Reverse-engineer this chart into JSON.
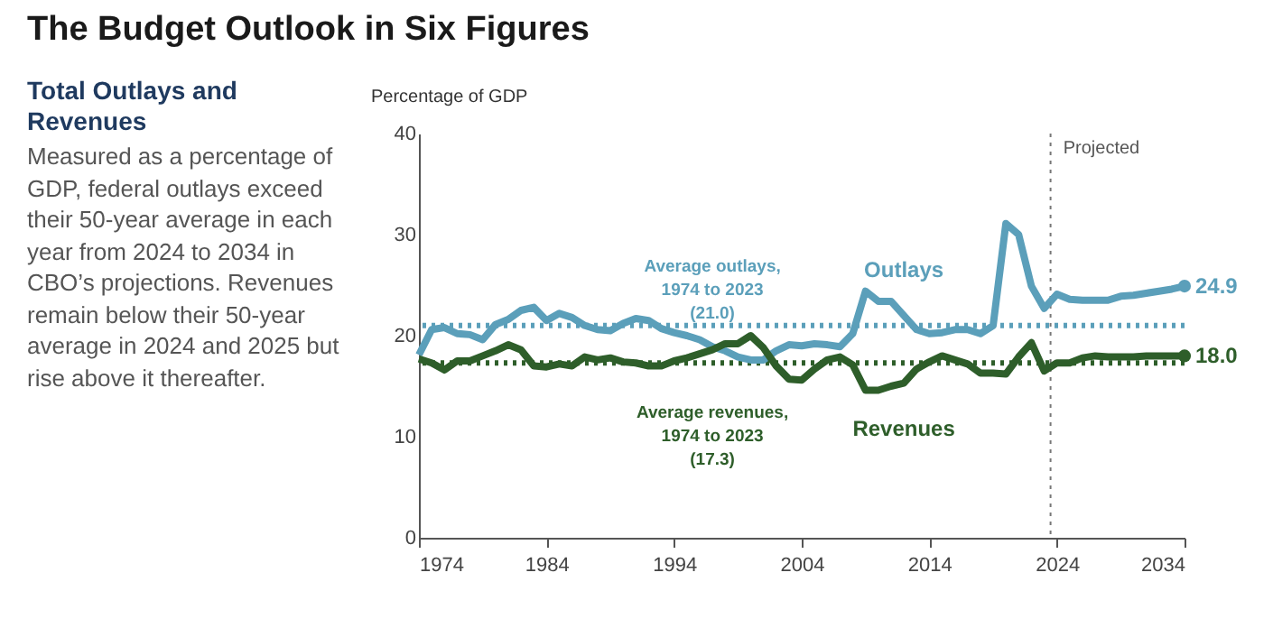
{
  "chart_data": {
    "type": "line",
    "title": "The Budget Outlook in Six Figures",
    "subtitle": "Total Outlays and Revenues",
    "ylabel": "Percentage of GDP",
    "annotations": [
      "Measured as a percentage of GDP, federal outlays exceed their 50-year average in each year from 2024 to 2034 in CBO’s projections. Revenues remain below their 50-year average in 2024 and 2025 but rise above it thereafter."
    ],
    "x": [
      1974,
      1975,
      1976,
      1977,
      1978,
      1979,
      1980,
      1981,
      1982,
      1983,
      1984,
      1985,
      1986,
      1987,
      1988,
      1989,
      1990,
      1991,
      1992,
      1993,
      1994,
      1995,
      1996,
      1997,
      1998,
      1999,
      2000,
      2001,
      2002,
      2003,
      2004,
      2005,
      2006,
      2007,
      2008,
      2009,
      2010,
      2011,
      2012,
      2013,
      2014,
      2015,
      2016,
      2017,
      2018,
      2019,
      2020,
      2021,
      2022,
      2023,
      2024,
      2025,
      2026,
      2027,
      2028,
      2029,
      2030,
      2031,
      2032,
      2033,
      2034
    ],
    "series": [
      {
        "name": "Outlays",
        "color": "#5b9fba",
        "values": [
          18.1,
          20.6,
          20.8,
          20.2,
          20.1,
          19.6,
          21.1,
          21.6,
          22.5,
          22.8,
          21.5,
          22.2,
          21.8,
          21.0,
          20.6,
          20.5,
          21.2,
          21.7,
          21.5,
          20.7,
          20.3,
          20.0,
          19.6,
          18.9,
          18.5,
          17.9,
          17.6,
          17.6,
          18.5,
          19.1,
          19.0,
          19.2,
          19.1,
          18.9,
          20.2,
          24.4,
          23.4,
          23.4,
          22.0,
          20.6,
          20.2,
          20.3,
          20.6,
          20.6,
          20.2,
          21.0,
          31.1,
          30.0,
          24.9,
          22.7,
          24.1,
          23.6,
          23.5,
          23.5,
          23.5,
          23.9,
          24.0,
          24.2,
          24.4,
          24.6,
          24.9
        ],
        "value_labels": [
          null,
          null,
          null,
          null,
          null,
          null,
          null,
          null,
          null,
          null,
          null,
          null,
          null,
          null,
          null,
          null,
          null,
          null,
          null,
          null,
          null,
          null,
          null,
          null,
          null,
          null,
          null,
          null,
          null,
          null,
          null,
          null,
          null,
          null,
          null,
          null,
          null,
          null,
          null,
          null,
          null,
          null,
          null,
          null,
          null,
          null,
          null,
          null,
          null,
          null,
          null,
          null,
          null,
          null,
          null,
          null,
          null,
          null,
          null,
          null,
          "24.9"
        ]
      },
      {
        "name": "Revenues",
        "color": "#2e5e2a",
        "values": [
          17.7,
          17.3,
          16.6,
          17.5,
          17.5,
          18.0,
          18.5,
          19.1,
          18.6,
          17.0,
          16.9,
          17.2,
          17.0,
          17.9,
          17.6,
          17.8,
          17.4,
          17.3,
          17.0,
          17.0,
          17.5,
          17.8,
          18.2,
          18.6,
          19.2,
          19.2,
          20.0,
          18.8,
          17.0,
          15.7,
          15.6,
          16.7,
          17.6,
          17.9,
          17.1,
          14.6,
          14.6,
          15.0,
          15.3,
          16.7,
          17.4,
          18.0,
          17.6,
          17.2,
          16.3,
          16.3,
          16.2,
          17.9,
          19.3,
          16.5,
          17.3,
          17.3,
          17.8,
          18.0,
          17.9,
          17.9,
          17.9,
          18.0,
          18.0,
          18.0,
          18.0
        ],
        "value_labels": [
          null,
          null,
          null,
          null,
          null,
          null,
          null,
          null,
          null,
          null,
          null,
          null,
          null,
          null,
          null,
          null,
          null,
          null,
          null,
          null,
          null,
          null,
          null,
          null,
          null,
          null,
          null,
          null,
          null,
          null,
          null,
          null,
          null,
          null,
          null,
          null,
          null,
          null,
          null,
          null,
          null,
          null,
          null,
          null,
          null,
          null,
          null,
          null,
          null,
          null,
          null,
          null,
          null,
          null,
          null,
          null,
          null,
          null,
          null,
          null,
          "18.0"
        ]
      }
    ],
    "xlim": [
      1974,
      2034
    ],
    "xticks": [
      1974,
      1984,
      1994,
      2004,
      2014,
      2024,
      2034
    ],
    "ylim": [
      0,
      40
    ],
    "yticks": [
      0,
      10,
      20,
      30,
      40
    ],
    "ref_lines": [
      {
        "axis": "y",
        "value": 21.0,
        "label": "Average outlays,\n1974 to 2023\n(21.0)",
        "color": "#5b9fba",
        "line_style": "dotted"
      },
      {
        "axis": "y",
        "value": 17.3,
        "label": "Average revenues,\n1974 to 2023\n(17.3)",
        "color": "#2e5e2a",
        "line_style": "dotted"
      },
      {
        "axis": "x",
        "value": 2023.5,
        "label": "Projected",
        "color": "#777777",
        "line_style": "dotted"
      }
    ],
    "grid": false,
    "legend": false,
    "line_style": "solid"
  }
}
